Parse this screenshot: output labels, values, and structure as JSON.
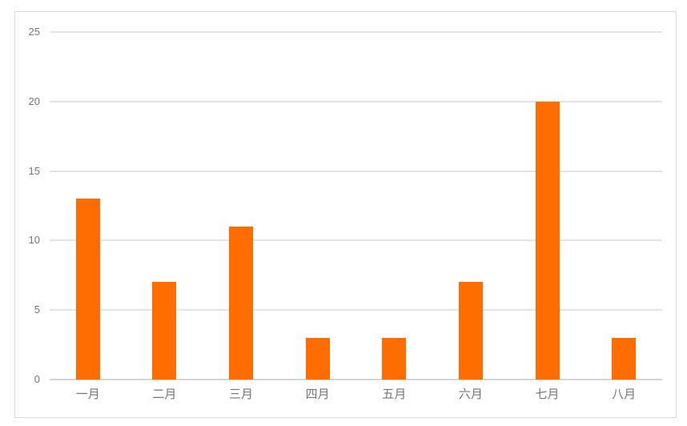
{
  "chart_data": {
    "type": "bar",
    "categories": [
      "一月",
      "二月",
      "三月",
      "四月",
      "五月",
      "六月",
      "七月",
      "八月"
    ],
    "values": [
      13,
      7,
      11,
      3,
      3,
      7,
      20,
      3
    ],
    "title": "",
    "xlabel": "",
    "ylabel": "",
    "ylim": [
      0,
      25
    ],
    "yticks": [
      0,
      5,
      10,
      15,
      20,
      25
    ],
    "grid": true,
    "legend": "none",
    "bar_color": "#ff6d00",
    "gridline_color": "#e4e4e4",
    "zero_line_color": "#d6d6d6",
    "axis_text_color": "#757575",
    "frame_border_color": "#d9d9d9",
    "background_color": "#ffffff"
  }
}
